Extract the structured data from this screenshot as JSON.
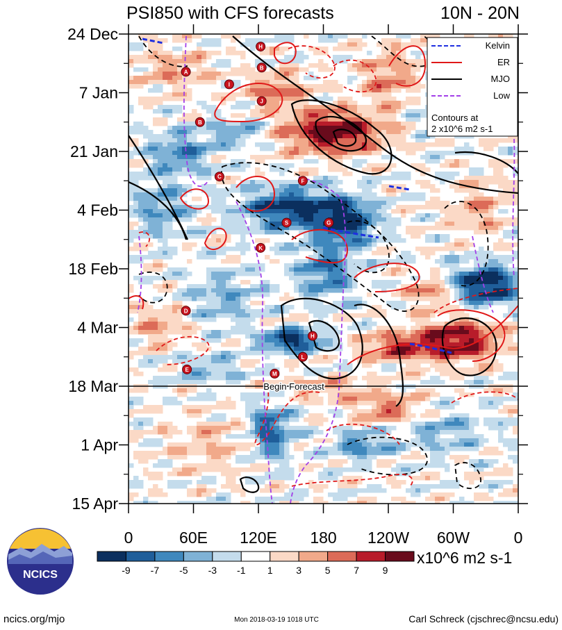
{
  "title_left": "PSI850 with CFS forecasts",
  "title_right": "10N - 20N",
  "forecast_label": "Begin Forecast",
  "unit_label": "x10^6 m2 s-1",
  "footer": {
    "left": "ncics.org/mjo",
    "center": "Mon 2018-03-19 1018 UTC",
    "right": "Carl Schreck (cjschrec@ncsu.edu)"
  },
  "logo": {
    "text": "NCICS"
  },
  "legend": {
    "items": [
      {
        "label": "Kelvin",
        "color": "#1e2fe0",
        "style": "dashed"
      },
      {
        "label": "ER",
        "color": "#e01818",
        "style": "solid"
      },
      {
        "label": "MJO",
        "color": "#000000",
        "style": "solid"
      },
      {
        "label": "Low",
        "color": "#a23fe8",
        "style": "dashed"
      }
    ],
    "note_line1": "Contours at",
    "note_line2": "2 x10^6 m2 s-1"
  },
  "colorbar": {
    "colors": [
      "#0b2f5e",
      "#1f5e9a",
      "#3f88bd",
      "#7fb2d6",
      "#c4dcec",
      "#ffffff",
      "#fbd9c6",
      "#f1a98a",
      "#dc6b58",
      "#b81c2a",
      "#690b1c"
    ],
    "tick_labels": [
      "-9",
      "-7",
      "-5",
      "-3",
      "-1",
      "1",
      "3",
      "5",
      "7",
      "9"
    ]
  },
  "chart_data": {
    "type": "heatmap",
    "title": "PSI850 with CFS forecasts",
    "region": "10N - 20N",
    "x_axis": {
      "tick_labels": [
        "0",
        "60E",
        "120E",
        "180",
        "120W",
        "60W",
        "0"
      ],
      "range_deg_east": [
        0,
        360
      ]
    },
    "y_axis": {
      "tick_labels": [
        "24 Dec",
        "7 Jan",
        "21 Jan",
        "4 Feb",
        "18 Feb",
        "4 Mar",
        "18 Mar",
        "1 Apr",
        "15 Apr"
      ],
      "range": [
        "2017-12-24",
        "2018-04-15"
      ],
      "direction": "time increases downward"
    },
    "forecast_start": "2018-03-18",
    "contour_interval": "2 x10^6 m2 s-1",
    "colorbar_levels": [
      -9,
      -7,
      -5,
      -3,
      -1,
      1,
      3,
      5,
      7,
      9
    ],
    "series": [
      {
        "name": "Kelvin"
      },
      {
        "name": "ER"
      },
      {
        "name": "MJO"
      },
      {
        "name": "Low"
      }
    ],
    "markers": [
      {
        "letter": "H",
        "lon": 122,
        "date": "2017-12-27"
      },
      {
        "letter": "B",
        "lon": 123,
        "date": "2018-01-01"
      },
      {
        "letter": "A",
        "lon": 53,
        "date": "2018-01-02"
      },
      {
        "letter": "I",
        "lon": 93,
        "date": "2018-01-05"
      },
      {
        "letter": "J",
        "lon": 123,
        "date": "2018-01-09"
      },
      {
        "letter": "B",
        "lon": 66,
        "date": "2018-01-14"
      },
      {
        "letter": "C",
        "lon": 84,
        "date": "2018-01-27"
      },
      {
        "letter": "F",
        "lon": 161,
        "date": "2018-01-28"
      },
      {
        "letter": "S",
        "lon": 146,
        "date": "2018-02-07"
      },
      {
        "letter": "G",
        "lon": 185,
        "date": "2018-02-07"
      },
      {
        "letter": "K",
        "lon": 122,
        "date": "2018-02-13"
      },
      {
        "letter": "D",
        "lon": 53,
        "date": "2018-02-28"
      },
      {
        "letter": "H",
        "lon": 170,
        "date": "2018-03-06"
      },
      {
        "letter": "L",
        "lon": 161,
        "date": "2018-03-11"
      },
      {
        "letter": "E",
        "lon": 54,
        "date": "2018-03-14"
      },
      {
        "letter": "M",
        "lon": 135,
        "date": "2018-03-15"
      }
    ]
  }
}
